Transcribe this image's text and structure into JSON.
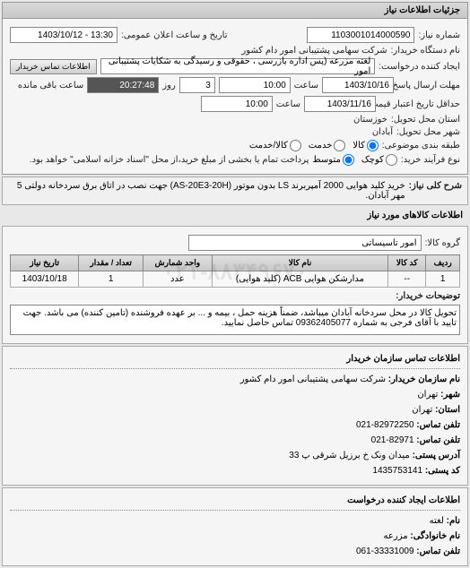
{
  "panel1": {
    "header": "جزئیات اطلاعات نیاز",
    "req_no_label": "شماره نیاز:",
    "req_no": "1103001014000590",
    "datetime_label": "تاریخ و ساعت اعلان عمومی:",
    "datetime": "13:30 - 1403/10/12",
    "buyer_unit_label": "نام دستگاه خریدار:",
    "buyer_unit": "شرکت سهامی پشتیبانی امور دام کشور",
    "creator_label": "ایجاد کننده درخواست:",
    "contact_btn": "اطلاعات تماس خریدار",
    "subject": "لغته مزرعه (پس اداره بازرسی ، حقوقی و رسیدگی به شکایات پشتیبانی امور",
    "deadline_label": "مهلت ارسال پاسخ:",
    "deadline_tolabel": "تا تاریخ:",
    "deadline_date": "1403/10/16",
    "time_label": "ساعت",
    "deadline_time": "10:00",
    "days_label": "روز",
    "days": "3",
    "remain_label": "ساعت باقی مانده",
    "remain": "20:27:48",
    "price_valid_label": "حداقل تاریخ اعتبار قیمت: تا تاریخ:",
    "price_valid_date": "1403/11/16",
    "price_valid_time": "10:00",
    "state_label": "استان محل تحویل:",
    "state": "خوزستان",
    "city_label": "شهر محل تحویل:",
    "city": "آبادان",
    "category_label": "طبقه بندی موضوعی:",
    "cat_kala": "کالا",
    "cat_khadamat": "خدمت",
    "cat_kalakhad": "کالا/خدمت",
    "type_label": "نوع فرآیند خرید:",
    "type_small": "کوچک",
    "type_med": "متوسط",
    "pay_note": "پرداخت تمام یا بخشی از مبلغ خرید،از محل \"اسناد خزانه اسلامی\" خواهد بود."
  },
  "key": {
    "label": "شرح کلی نیاز:",
    "text": "خرید کلید هوایی 2000 آمپربرند LS بدون موتور (AS-20E3-20H) جهت نصب در اتاق برق سردخانه دولتی 5 مهر آبادان."
  },
  "goods": {
    "header": "اطلاعات کالاهای مورد نیاز",
    "group_label": "گروه کالا:",
    "group": "امور تاسیساتی",
    "columns": [
      "ردیف",
      "کد کالا",
      "نام کالا",
      "واحد شمارش",
      "تعداد / مقدار",
      "تاریخ نیاز"
    ],
    "rows": [
      [
        "1",
        "--",
        "مدارشکن هوایی ACB (کلید هوایی)",
        "عدد",
        "1",
        "1403/10/18"
      ]
    ]
  },
  "buyer_note": {
    "label": "توضیحات خریدار:",
    "text": "تحویل کالا در محل سردخانه آبادان میباشد، ضمناً هزینه حمل ، بیمه و ... بر عهده فروشنده (تامین کننده) می باشد. جهت تایید با آقای فرجی به شماره 09362405077 تماس حاصل نمایید."
  },
  "watermark": "۰۲۱-۸۸۳۴۹۶۷۰",
  "contact_org": {
    "header": "اطلاعات تماس سازمان خریدار",
    "org_label": "نام سازمان خریدار:",
    "org": "شرکت سهامی پشتیبانی امور دام کشور",
    "city_label": "شهر:",
    "city": "تهران",
    "province_label": "استان:",
    "province": "تهران",
    "phone_label": "تلفن تماس:",
    "phone": "82972250-021",
    "fax_label": "تلفن تماس:",
    "fax": "82971-021",
    "addr_label": "آدرس پستی:",
    "addr": "میدان ونک خ برزیل شرقی پ 33",
    "post_label": "کد پستی:",
    "post": "1435753141"
  },
  "contact_creator": {
    "header": "اطلاعات ایجاد کننده درخواست",
    "name_label": "نام:",
    "name": "لغته",
    "family_label": "نام خانوادگی:",
    "family": "مزرعه",
    "phone_label": "تلفن تماس:",
    "phone": "33331009-061"
  }
}
